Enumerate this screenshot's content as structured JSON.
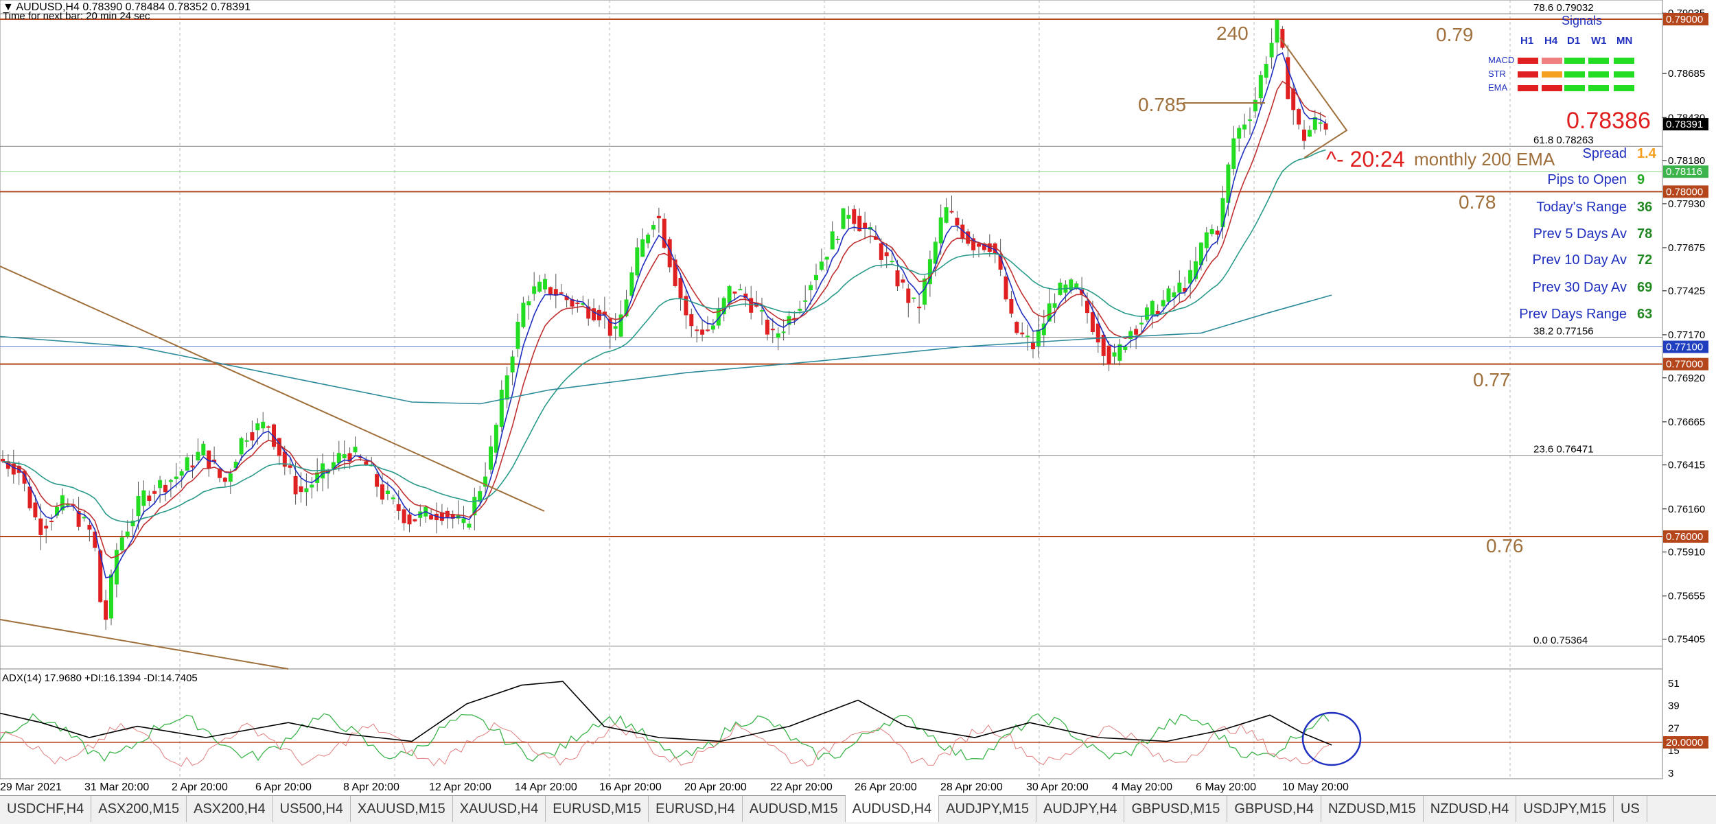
{
  "header": {
    "title": "AUDUSD,H4  0.78390 0.78484 0.78352 0.78391",
    "timer": "Time for next bar: 20 min 24 sec"
  },
  "price_axis": {
    "labels": [
      "0.79035",
      "0.78685",
      "0.78430",
      "0.78180",
      "0.77930",
      "0.77675",
      "0.77425",
      "0.77170",
      "0.76920",
      "0.76665",
      "0.76415",
      "0.76160",
      "0.75910",
      "0.75655",
      "0.75405"
    ],
    "tags": [
      {
        "value": "0.79000",
        "color": "#b5451b"
      },
      {
        "value": "0.78391",
        "color": "#000000"
      },
      {
        "value": "0.78116",
        "color": "#3cb44b"
      },
      {
        "value": "0.78000",
        "color": "#b5451b"
      },
      {
        "value": "0.77100",
        "color": "#1f3fbf"
      },
      {
        "value": "0.77000",
        "color": "#b5451b"
      },
      {
        "value": "0.76000",
        "color": "#b5451b"
      }
    ]
  },
  "time_axis": [
    "29 Mar 2021",
    "31 Mar 20:00",
    "2 Apr 20:00",
    "6 Apr 20:00",
    "8 Apr 20:00",
    "12 Apr 20:00",
    "14 Apr 20:00",
    "16 Apr 20:00",
    "20 Apr 20:00",
    "22 Apr 20:00",
    "26 Apr 20:00",
    "28 Apr 20:00",
    "30 Apr 20:00",
    "4 May 20:00",
    "6 May 20:00",
    "10 May 20:00"
  ],
  "annotations": {
    "label_240": "240",
    "label_079": "0.79",
    "label_0785": "0.785",
    "label_078": "0.78",
    "label_077": "0.77",
    "label_076": "0.76",
    "timer_label": "^- 20:24",
    "ema_label": "monthly 200 EMA",
    "current_price": "0.78386"
  },
  "fibs": [
    {
      "label": "78.6",
      "value": "0.79032"
    },
    {
      "label": "61.8",
      "value": "0.78263"
    },
    {
      "label": "38.2",
      "value": "0.77156"
    },
    {
      "label": "23.6",
      "value": "0.76471"
    },
    {
      "label": "0.0",
      "value": "0.75364"
    }
  ],
  "signals": {
    "title": "Signals",
    "timeframes": [
      "H1",
      "H4",
      "D1",
      "W1",
      "MN"
    ],
    "rows": [
      {
        "name": "MACD",
        "colors": [
          "#e02020",
          "#f08080",
          "#22dd22",
          "#22dd22",
          "#22dd22"
        ]
      },
      {
        "name": "STR",
        "colors": [
          "#e02020",
          "#f5a020",
          "#22dd22",
          "#22dd22",
          "#22dd22"
        ]
      },
      {
        "name": "EMA",
        "colors": [
          "#e02020",
          "#e02020",
          "#22dd22",
          "#22dd22",
          "#22dd22"
        ]
      }
    ]
  },
  "stats": [
    {
      "label": "Spread",
      "value": "1.4",
      "value_color": "#f5a020"
    },
    {
      "label": "Pips to Open",
      "value": "9",
      "value_color": "#22aa22"
    },
    {
      "label": "Today's Range",
      "value": "36",
      "value_color": "#228822"
    },
    {
      "label": "Prev 5 Days Av",
      "value": "78",
      "value_color": "#228822"
    },
    {
      "label": "Prev 10 Day Av",
      "value": "72",
      "value_color": "#228822"
    },
    {
      "label": "Prev 30 Day Av",
      "value": "69",
      "value_color": "#228822"
    },
    {
      "label": "Prev Days Range",
      "value": "63",
      "value_color": "#228822"
    }
  ],
  "adx": {
    "title": "ADX(14) 17.9680 +DI:16.1394 -DI:14.7405",
    "axis_labels": [
      "51",
      "39",
      "27",
      "15",
      "3"
    ],
    "level_tag": "20.0000"
  },
  "tabs": [
    "USDCHF,H4",
    "ASX200,M15",
    "ASX200,H4",
    "US500,H4",
    "XAUUSD,M15",
    "XAUUSD,H4",
    "EURUSD,M15",
    "EURUSD,H4",
    "AUDUSD,M15",
    "AUDUSD,H4",
    "AUDJPY,M15",
    "AUDJPY,H4",
    "GBPUSD,M15",
    "GBPUSD,H4",
    "NZDUSD,M15",
    "NZDUSD,H4",
    "USDJPY,M15",
    "US"
  ],
  "active_tab": "AUDUSD,H4",
  "colors": {
    "level_line": "#b5451b",
    "trend_line": "#a0703c",
    "bull": "#22dd22",
    "bear": "#e02020",
    "ema_fast": "#1f2fbf",
    "ema_mid": "#c03030",
    "ema_slow": "#2a9a8a",
    "ema_200": "#2a8a9a"
  }
}
